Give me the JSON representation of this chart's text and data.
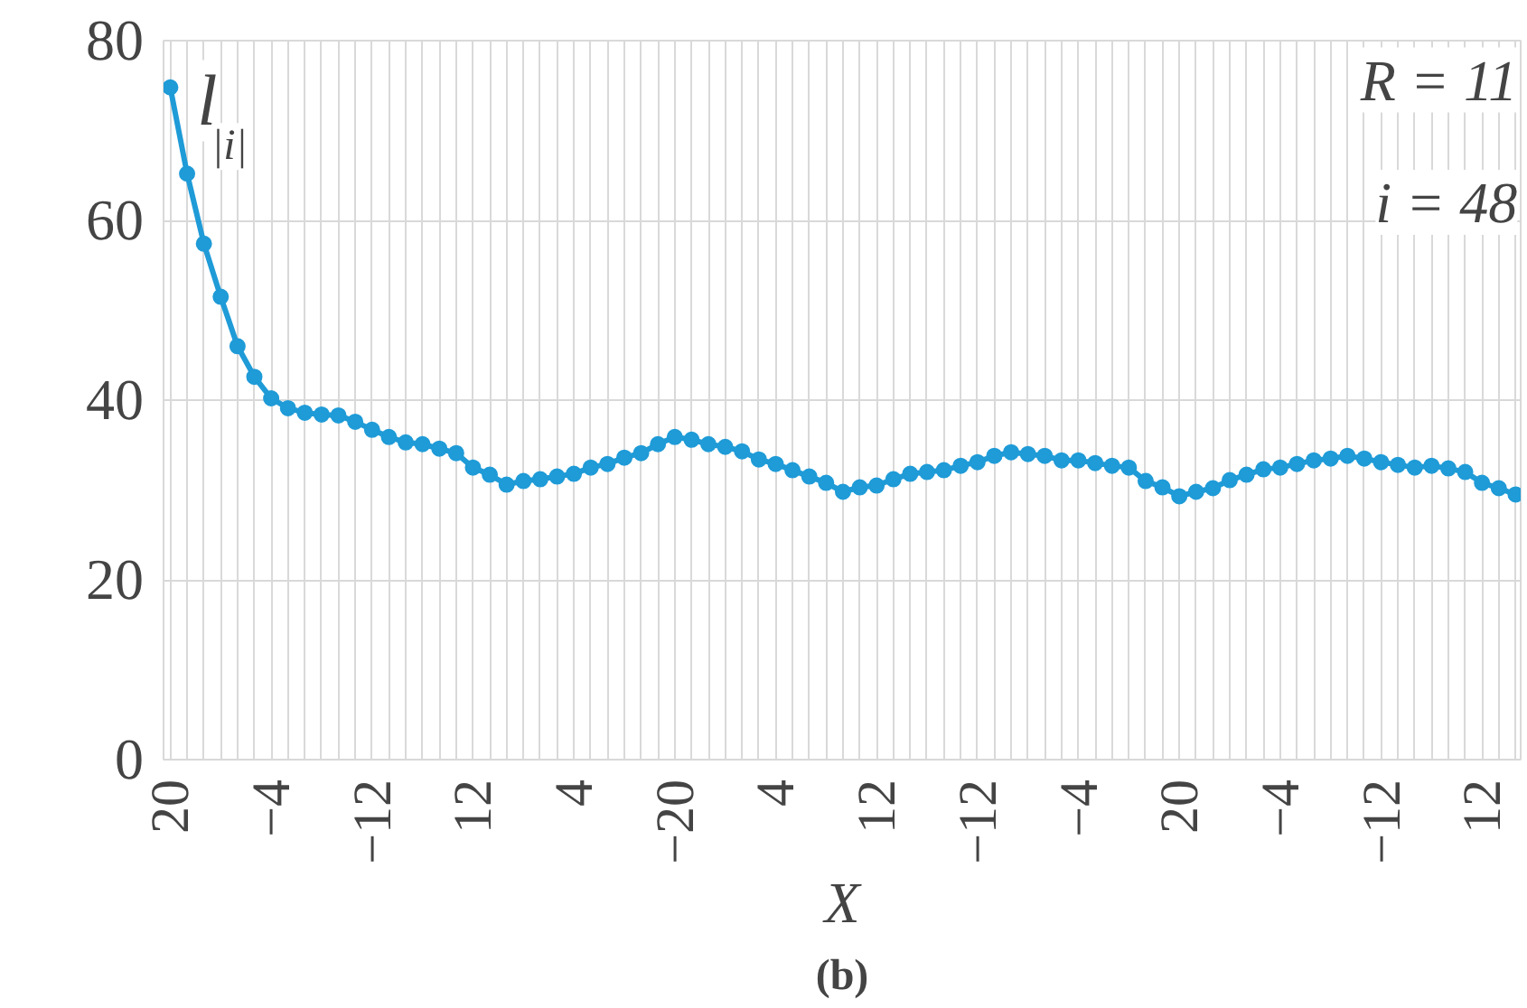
{
  "chart_data": {
    "type": "line",
    "categories": [
      "20",
      null,
      null,
      null,
      null,
      null,
      "−4",
      null,
      null,
      null,
      null,
      null,
      "−12",
      null,
      null,
      null,
      null,
      null,
      "12",
      null,
      null,
      null,
      null,
      null,
      "4",
      null,
      null,
      null,
      null,
      null,
      "−20",
      null,
      null,
      null,
      null,
      null,
      "4",
      null,
      null,
      null,
      null,
      null,
      "12",
      null,
      null,
      null,
      null,
      null,
      "−12",
      null,
      null,
      null,
      null,
      null,
      "−4",
      null,
      null,
      null,
      null,
      null,
      "20",
      null,
      null,
      null,
      null,
      null,
      "−4",
      null,
      null,
      null,
      null,
      null,
      "−12",
      null,
      null,
      null,
      null,
      null,
      "12",
      null,
      null
    ],
    "series": [
      {
        "color": "#1f9bd7",
        "values": [
          74.8,
          65.2,
          57.4,
          51.5,
          46.0,
          42.6,
          40.2,
          39.1,
          38.6,
          38.4,
          38.3,
          37.6,
          36.7,
          35.9,
          35.3,
          35.1,
          34.6,
          34.1,
          32.5,
          31.7,
          30.6,
          31.0,
          31.2,
          31.5,
          31.8,
          32.5,
          32.9,
          33.6,
          34.1,
          35.1,
          35.9,
          35.6,
          35.1,
          34.8,
          34.3,
          33.4,
          32.9,
          32.2,
          31.5,
          30.8,
          29.8,
          30.3,
          30.5,
          31.2,
          31.8,
          32.0,
          32.2,
          32.7,
          33.1,
          33.8,
          34.2,
          34.0,
          33.8,
          33.3,
          33.3,
          33.0,
          32.7,
          32.5,
          31.0,
          30.3,
          29.3,
          29.8,
          30.2,
          31.1,
          31.7,
          32.3,
          32.5,
          32.9,
          33.3,
          33.5,
          33.8,
          33.5,
          33.1,
          32.8,
          32.5,
          32.7,
          32.4,
          32.0,
          30.8,
          30.2,
          29.5
        ]
      }
    ],
    "xlabel": "X",
    "ylabel": "l$_{|i|}$",
    "ylim": [
      0,
      80
    ],
    "yticks": [
      0,
      20,
      40,
      60,
      80
    ],
    "annotations": [
      "R = 11",
      "i = 48",
      "(b)"
    ],
    "grid": true,
    "marker": "circle",
    "line_style": "solid"
  }
}
